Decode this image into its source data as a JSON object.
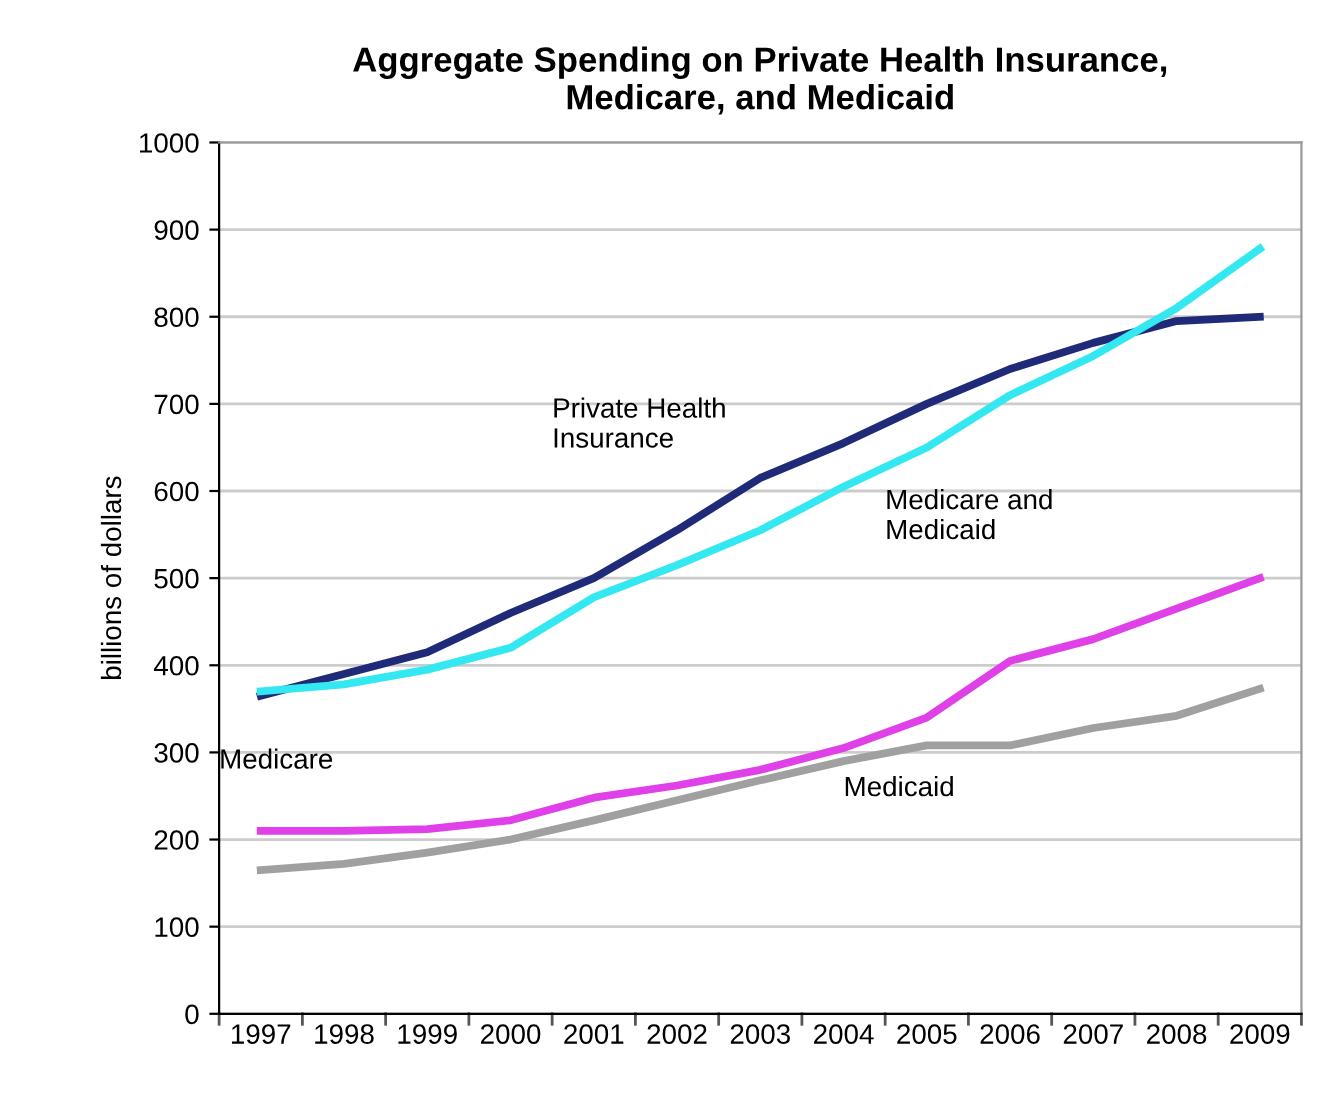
{
  "chart_data": {
    "type": "line",
    "title": "Aggregate Spending on Private Health Insurance,\nMedicare, and Medicaid",
    "ylabel": "billions of dollars",
    "categories": [
      "1997",
      "1998",
      "1999",
      "2000",
      "2001",
      "2002",
      "2003",
      "2004",
      "2005",
      "2006",
      "2007",
      "2008",
      "2009"
    ],
    "series": [
      {
        "name": "Private Health\nInsurance",
        "color": "#1f2a78",
        "values": [
          365,
          390,
          415,
          460,
          500,
          555,
          615,
          655,
          700,
          740,
          770,
          795,
          800
        ]
      },
      {
        "name": "Medicare and\nMedicaid",
        "color": "#33e8f0",
        "values": [
          370,
          378,
          395,
          420,
          478,
          515,
          555,
          605,
          650,
          710,
          755,
          810,
          878
        ]
      },
      {
        "name": "Medicare",
        "color": "#e040e8",
        "values": [
          210,
          210,
          212,
          222,
          248,
          262,
          280,
          305,
          340,
          405,
          430,
          465,
          500
        ]
      },
      {
        "name": "Medicaid",
        "color": "#a0a0a0",
        "values": [
          165,
          172,
          185,
          200,
          222,
          245,
          268,
          290,
          308,
          308,
          328,
          342,
          373
        ]
      }
    ],
    "ylim": [
      0,
      1000
    ],
    "yticks": [
      0,
      100,
      200,
      300,
      400,
      500,
      600,
      700,
      800,
      900,
      1000
    ],
    "grid": "y",
    "legend": false,
    "marker": "none",
    "line_style": "solid"
  }
}
